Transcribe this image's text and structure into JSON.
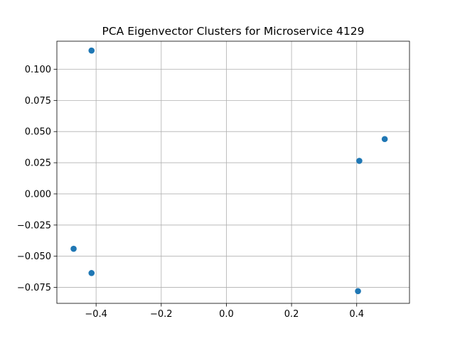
{
  "chart_data": {
    "type": "scatter",
    "title": "PCA Eigenvector Clusters for Microservice 4129",
    "xlabel": "",
    "ylabel": "",
    "xlim": [
      -0.5204,
      0.5621
    ],
    "ylim": [
      -0.0878,
      0.1225
    ],
    "x_ticks": [
      -0.4,
      -0.2,
      0.0,
      0.2,
      0.4
    ],
    "x_tick_labels": [
      "−0.4",
      "−0.2",
      "0.0",
      "0.2",
      "0.4"
    ],
    "y_ticks": [
      -0.075,
      -0.05,
      -0.025,
      0.0,
      0.025,
      0.05,
      0.075,
      0.1
    ],
    "y_tick_labels": [
      "−0.075",
      "−0.050",
      "−0.025",
      "0.000",
      "0.025",
      "0.050",
      "0.075",
      "0.100"
    ],
    "grid": true,
    "marker_color": "#1f77b4",
    "points": [
      {
        "x": -0.414,
        "y": 0.115
      },
      {
        "x": -0.469,
        "y": -0.044
      },
      {
        "x": -0.414,
        "y": -0.0635
      },
      {
        "x": 0.408,
        "y": 0.0265
      },
      {
        "x": 0.486,
        "y": 0.044
      },
      {
        "x": 0.404,
        "y": -0.078
      }
    ]
  }
}
